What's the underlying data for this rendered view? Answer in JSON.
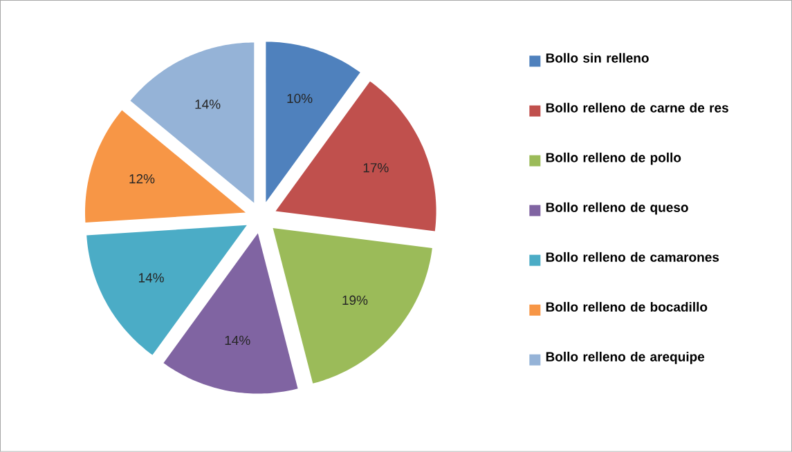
{
  "chart_data": {
    "type": "pie",
    "categories": [
      "Bollo sin relleno",
      "Bollo relleno de carne de res",
      "Bollo relleno de pollo",
      "Bollo relleno de queso",
      "Bollo relleno de camarones",
      "Bollo relleno de bocadillo",
      "Bollo relleno de arequipe"
    ],
    "values": [
      10,
      17,
      19,
      14,
      14,
      12,
      14
    ],
    "value_labels": [
      "10%",
      "17%",
      "19%",
      "14%",
      "14%",
      "12%",
      "14%"
    ],
    "colors": [
      "#4f81bd",
      "#c0504d",
      "#9bbb59",
      "#8064a2",
      "#4bacc6",
      "#f79646",
      "#95b3d7"
    ],
    "legend": "right"
  }
}
